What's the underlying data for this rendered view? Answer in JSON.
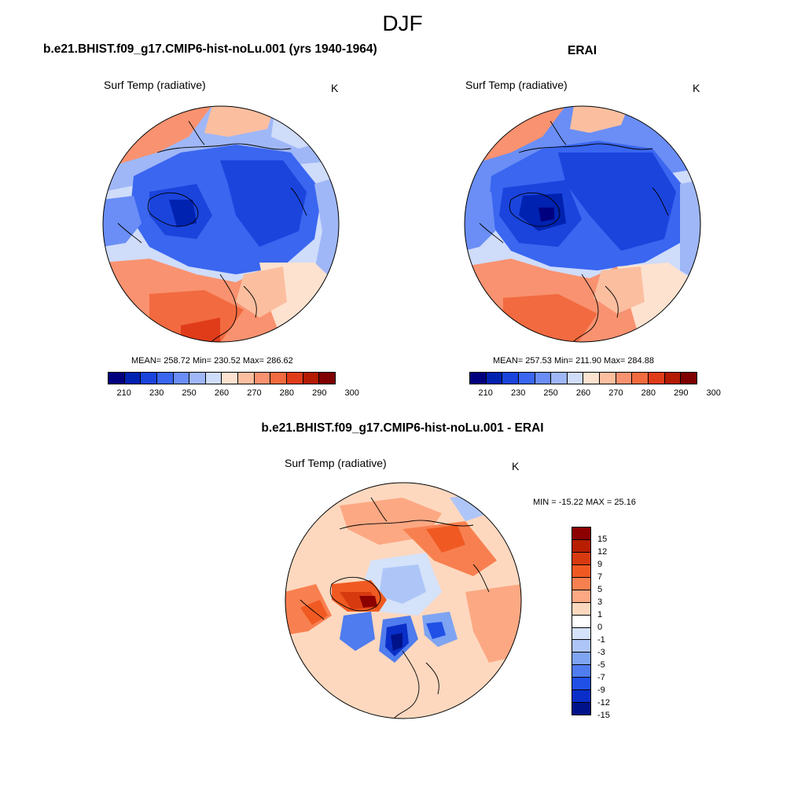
{
  "figure": {
    "season": "DJF"
  },
  "panel_model": {
    "title": "b.e21.BHIST.f09_g17.CMIP6-hist-noLu.001 (yrs 1940-1964)",
    "variable": "Surf Temp (radiative)",
    "units": "K",
    "stats": "MEAN= 258.72  Min= 230.52  Max= 286.62"
  },
  "panel_obs": {
    "title": "ERAI",
    "variable": "Surf Temp (radiative)",
    "units": "K",
    "stats": "MEAN= 257.53  Min= 211.90  Max= 284.88"
  },
  "panel_diff": {
    "title": "b.e21.BHIST.f09_g17.CMIP6-hist-noLu.001 - ERAI",
    "variable": "Surf Temp (radiative)",
    "units": "K",
    "stats": "MIN = -15.22 MAX =  25.16"
  },
  "abs_colorbar": {
    "colors": [
      "#00007f",
      "#0022b0",
      "#1a44dc",
      "#3a66f0",
      "#6a8ef5",
      "#9fb7f7",
      "#cfdcfa",
      "#fde2d0",
      "#fbbfa0",
      "#f99270",
      "#f26a40",
      "#e03c1a",
      "#b31a00",
      "#7f0000"
    ],
    "tick_labels": [
      "210",
      "230",
      "250",
      "260",
      "270",
      "280",
      "290",
      "300"
    ]
  },
  "diff_colorbar": {
    "colors": [
      "#8c0000",
      "#b81e00",
      "#d83a10",
      "#f05a22",
      "#f88050",
      "#fca883",
      "#fdd8bf",
      "#ffffff",
      "#d4e2fa",
      "#aec6f7",
      "#7fa4f2",
      "#4f7cee",
      "#2050e6",
      "#0a2fc8",
      "#00128a"
    ],
    "tick_labels": [
      "15",
      "12",
      "9",
      "7",
      "5",
      "3",
      "1",
      "0",
      "-1",
      "-3",
      "-5",
      "-7",
      "-9",
      "-12",
      "-15"
    ]
  }
}
